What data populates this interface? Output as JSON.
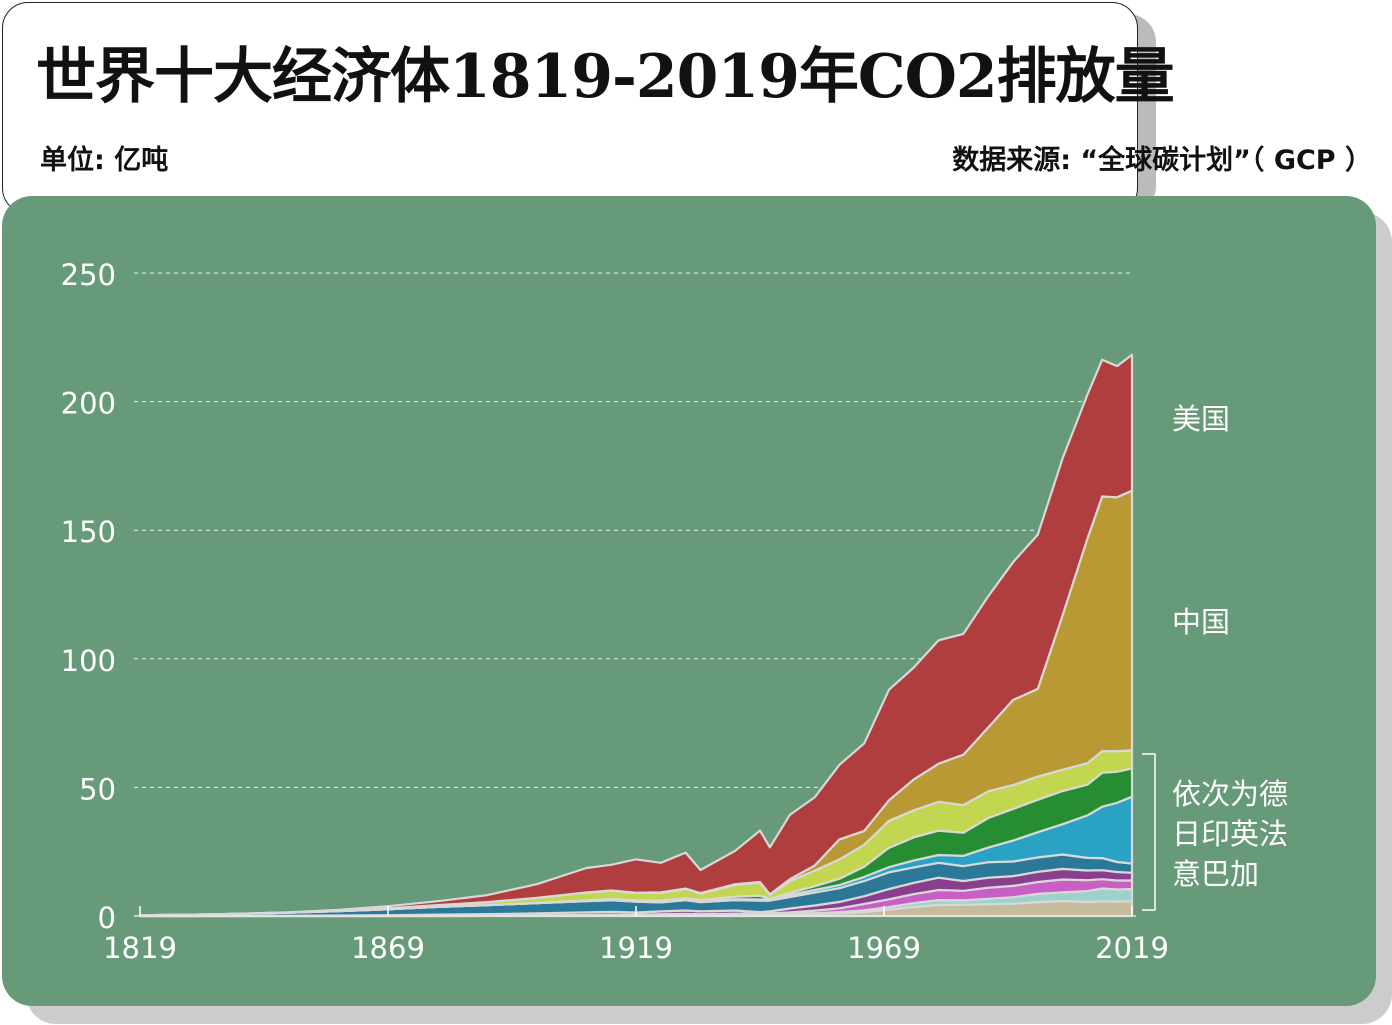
{
  "header": {
    "title": "世界十大经济体1819-2019年CO2排放量",
    "unit": "单位: 亿吨",
    "source": "数据来源: “全球碳计划”（ GCP ）"
  },
  "colors": {
    "panel": "#669a79",
    "usa": "#b03e3e",
    "china": "#b89933",
    "germany": "#c2d64f",
    "japan": "#278d33",
    "india": "#2aa2c4",
    "uk": "#2b7899",
    "france": "#8a3f8e",
    "italy": "#c95ec7",
    "brazil": "#9bd3cb",
    "canada": "#c4bc9a"
  },
  "chart_data": {
    "type": "area",
    "stacked": true,
    "x": [
      1819,
      1829,
      1839,
      1849,
      1859,
      1869,
      1879,
      1889,
      1899,
      1909,
      1914,
      1919,
      1924,
      1929,
      1932,
      1939,
      1944,
      1946,
      1950,
      1955,
      1960,
      1965,
      1970,
      1975,
      1980,
      1985,
      1990,
      1995,
      2000,
      2005,
      2010,
      2013,
      2016,
      2019
    ],
    "series": [
      {
        "name": "加",
        "key": "canada",
        "values": [
          0,
          0,
          0,
          0,
          0,
          0,
          0,
          0.02,
          0.05,
          0.15,
          0.2,
          0.25,
          0.3,
          0.35,
          0.3,
          0.35,
          0.5,
          0.5,
          0.6,
          0.8,
          1,
          1.5,
          2.5,
          3.5,
          4.3,
          4.3,
          4.6,
          4.8,
          5.4,
          5.8,
          5.5,
          5.7,
          5.6,
          5.8
        ]
      },
      {
        "name": "巴",
        "key": "brazil",
        "values": [
          0,
          0,
          0,
          0,
          0,
          0,
          0,
          0,
          0,
          0,
          0,
          0,
          0,
          0,
          0,
          0,
          0.1,
          0.1,
          0.2,
          0.3,
          0.5,
          0.7,
          1,
          1.5,
          1.9,
          1.8,
          2.1,
          2.5,
          3.2,
          3.4,
          4.2,
          5,
          4.7,
          4.7
        ]
      },
      {
        "name": "意",
        "key": "italy",
        "values": [
          0,
          0,
          0,
          0,
          0,
          0,
          0.05,
          0.1,
          0.15,
          0.3,
          0.3,
          0.3,
          0.4,
          0.5,
          0.4,
          0.6,
          0.4,
          0.4,
          0.6,
          1,
          1.5,
          2.5,
          3,
          3.5,
          3.9,
          3.7,
          4.3,
          4.4,
          4.6,
          5,
          4.2,
          3.6,
          3.5,
          3.3
        ]
      },
      {
        "name": "法",
        "key": "france",
        "values": [
          0,
          0,
          0.05,
          0.1,
          0.2,
          0.3,
          0.5,
          0.6,
          0.8,
          1,
          1.1,
          0.8,
          1.1,
          1.3,
          1.1,
          1.2,
          0.5,
          0.8,
          1.5,
          2,
          2.5,
          3,
          4,
          4.4,
          4.8,
          3.8,
          3.9,
          3.8,
          4,
          4.1,
          3.8,
          3.5,
          3.3,
          3
        ]
      },
      {
        "name": "英",
        "key": "uk",
        "values": [
          0.3,
          0.5,
          0.8,
          1.2,
          1.7,
          2.3,
          3,
          3.5,
          4,
          4.3,
          4.5,
          4.2,
          3.5,
          4,
          3.6,
          4,
          4.5,
          4.2,
          4.5,
          5,
          5.3,
          5.9,
          6.5,
          6,
          5.8,
          5.8,
          6,
          5.7,
          5.6,
          5.6,
          4.9,
          4.7,
          3.9,
          3.6
        ]
      },
      {
        "name": "印",
        "key": "india",
        "values": [
          0,
          0,
          0,
          0,
          0,
          0,
          0,
          0,
          0,
          0.1,
          0.2,
          0.2,
          0.3,
          0.3,
          0.3,
          0.4,
          0.4,
          0.4,
          0.8,
          1,
          1.2,
          1.6,
          2,
          2.7,
          3,
          4,
          5.7,
          8.1,
          9.8,
          11.8,
          16.5,
          20,
          23,
          26
        ]
      },
      {
        "name": "日",
        "key": "japan",
        "values": [
          0,
          0,
          0,
          0,
          0,
          0,
          0,
          0,
          0.05,
          0.2,
          0.3,
          0.4,
          0.4,
          0.5,
          0.5,
          1,
          1.5,
          0.3,
          0.8,
          1.5,
          2.5,
          4,
          7.5,
          9,
          9.5,
          9,
          11.5,
          12.3,
          12.6,
          12.9,
          12,
          13.2,
          12.1,
          11
        ]
      },
      {
        "name": "德",
        "key": "germany",
        "values": [
          0,
          0,
          0,
          0.05,
          0.2,
          0.4,
          0.7,
          1.2,
          2,
          3,
          3.2,
          2.8,
          3,
          3.5,
          2.5,
          4.5,
          5,
          1.5,
          4.5,
          6,
          7.5,
          8.5,
          10.5,
          10.5,
          11.2,
          10.7,
          10.4,
          9.3,
          9,
          8.3,
          8.3,
          8.4,
          8,
          7
        ]
      },
      {
        "name": "中国",
        "key": "china",
        "values": [
          0,
          0,
          0,
          0,
          0,
          0,
          0,
          0,
          0,
          0.1,
          0.1,
          0.1,
          0.2,
          0.2,
          0.2,
          0.3,
          0.3,
          0.2,
          0.8,
          2,
          7.8,
          5.4,
          8,
          12,
          14.8,
          19.6,
          24.8,
          33.1,
          34.1,
          60,
          87.3,
          99,
          98.7,
          101
        ]
      },
      {
        "name": "美国",
        "key": "usa",
        "values": [
          0,
          0.02,
          0.05,
          0.1,
          0.3,
          0.8,
          1.5,
          2.7,
          5.3,
          9.5,
          10,
          13,
          11.5,
          14,
          9,
          13,
          20,
          18.3,
          25,
          26.5,
          29,
          34,
          43,
          43.5,
          48,
          47,
          51,
          53.5,
          60,
          61,
          56,
          53.2,
          51,
          52.8
        ]
      }
    ],
    "xticks": [
      "1819",
      "1869",
      "1919",
      "1969",
      "2019"
    ],
    "yticks": [
      "0",
      "50",
      "100",
      "150",
      "200",
      "250"
    ],
    "ylim": [
      0,
      250
    ],
    "xlim": [
      1819,
      2019
    ],
    "grid": true,
    "labels": {
      "usa": "美国",
      "china": "中国",
      "others": [
        "依次为德",
        "日印英法",
        "意巴加"
      ]
    }
  }
}
